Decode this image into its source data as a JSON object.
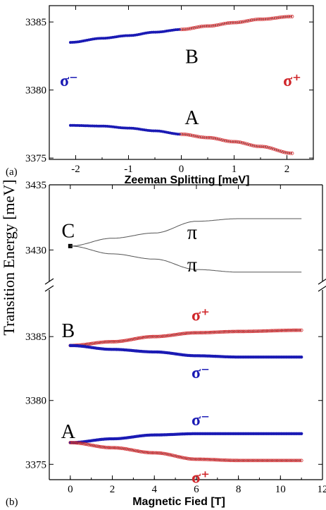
{
  "y_axis_label": "Transition  Energy  [meV]",
  "chart_data": [
    {
      "type": "scatter",
      "panel_label": "(a)",
      "xlabel": "Zeeman Splitting [meV]",
      "ylabel": "",
      "xlim": [
        -2.5,
        2.5
      ],
      "ylim": [
        3374.9,
        3386.2
      ],
      "xticks": [
        -2,
        -1,
        0,
        1,
        2
      ],
      "yticks": [
        3375,
        3380,
        3385
      ],
      "polarization_labels": {
        "left": "σ⁻",
        "right": "σ⁺"
      },
      "series": [
        {
          "name": "B",
          "label_at": [
            0.2,
            3382.5
          ],
          "x": [
            -2.1,
            -1.5,
            -1.0,
            -0.5,
            0.0,
            0.5,
            1.0,
            1.5,
            2.1
          ],
          "y": [
            3383.5,
            3383.8,
            3384.0,
            3384.25,
            3384.45,
            3384.7,
            3384.95,
            3385.2,
            3385.4
          ]
        },
        {
          "name": "A",
          "label_at": [
            0.2,
            3378.0
          ],
          "x": [
            -2.1,
            -1.5,
            -1.0,
            -0.5,
            0.0,
            0.5,
            1.0,
            1.5,
            2.1
          ],
          "y": [
            3377.4,
            3377.35,
            3377.2,
            3377.0,
            3376.75,
            3376.5,
            3376.2,
            3375.85,
            3375.35
          ]
        }
      ]
    },
    {
      "type": "line",
      "panel_label": "(b)",
      "xlabel": "Magnetic Fied [T]",
      "ylabel": "",
      "xlim": [
        -1,
        12
      ],
      "ylim_upper": [
        3427.8,
        3435
      ],
      "ylim_lower": [
        3373.8,
        3388.6
      ],
      "xticks": [
        0,
        2,
        4,
        6,
        8,
        10,
        12
      ],
      "yticks_upper": [
        3430,
        3435
      ],
      "yticks_lower": [
        3375,
        3380,
        3385
      ],
      "series": [
        {
          "name": "C",
          "label_at": [
            -0.1,
            3431.5
          ],
          "x": [
            0
          ],
          "y": [
            3430.3
          ],
          "style": "square"
        },
        {
          "name": "π",
          "label_at": [
            5.8,
            3431.4
          ],
          "x": [
            0,
            2,
            4,
            6,
            8,
            11
          ],
          "y": [
            3430.3,
            3430.9,
            3431.3,
            3432.2,
            3432.4,
            3432.4
          ],
          "style": "line"
        },
        {
          "name": "π",
          "label_at": [
            5.8,
            3428.9
          ],
          "x": [
            0,
            2,
            4,
            6,
            8,
            11
          ],
          "y": [
            3430.3,
            3429.7,
            3429.3,
            3428.5,
            3428.3,
            3428.3
          ],
          "style": "line"
        },
        {
          "name": "B",
          "label_at": [
            -0.1,
            3385.5
          ],
          "x": [],
          "y": [],
          "style": "none"
        },
        {
          "name": "σ⁺",
          "label_at": [
            6.2,
            3386.8
          ],
          "x": [
            0,
            2,
            4,
            6,
            8,
            11
          ],
          "y": [
            3384.3,
            3384.6,
            3385.0,
            3385.3,
            3385.4,
            3385.5
          ],
          "style": "open-red"
        },
        {
          "name": "σ⁻",
          "label_at": [
            6.2,
            3382.3
          ],
          "x": [
            0,
            2,
            4,
            6,
            8,
            11
          ],
          "y": [
            3384.3,
            3384.0,
            3383.8,
            3383.5,
            3383.4,
            3383.4
          ],
          "style": "filled-blue"
        },
        {
          "name": "A",
          "label_at": [
            -0.1,
            3377.6
          ],
          "x": [],
          "y": [],
          "style": "none"
        },
        {
          "name": "σ⁻",
          "label_at": [
            6.2,
            3378.6
          ],
          "x": [
            0,
            2,
            4,
            6,
            8,
            11
          ],
          "y": [
            3376.7,
            3377.0,
            3377.3,
            3377.4,
            3377.4,
            3377.4
          ],
          "style": "filled-blue"
        },
        {
          "name": "σ⁺",
          "label_at": [
            6.2,
            3374.1
          ],
          "x": [
            0,
            2,
            4,
            6,
            8,
            11
          ],
          "y": [
            3376.7,
            3376.3,
            3375.9,
            3375.4,
            3375.3,
            3375.3
          ],
          "style": "open-red"
        }
      ]
    }
  ],
  "colors": {
    "sigma_minus": "#1a1ab4",
    "sigma_plus": "#d0262a",
    "line": "#555555",
    "axis": "#000000"
  }
}
